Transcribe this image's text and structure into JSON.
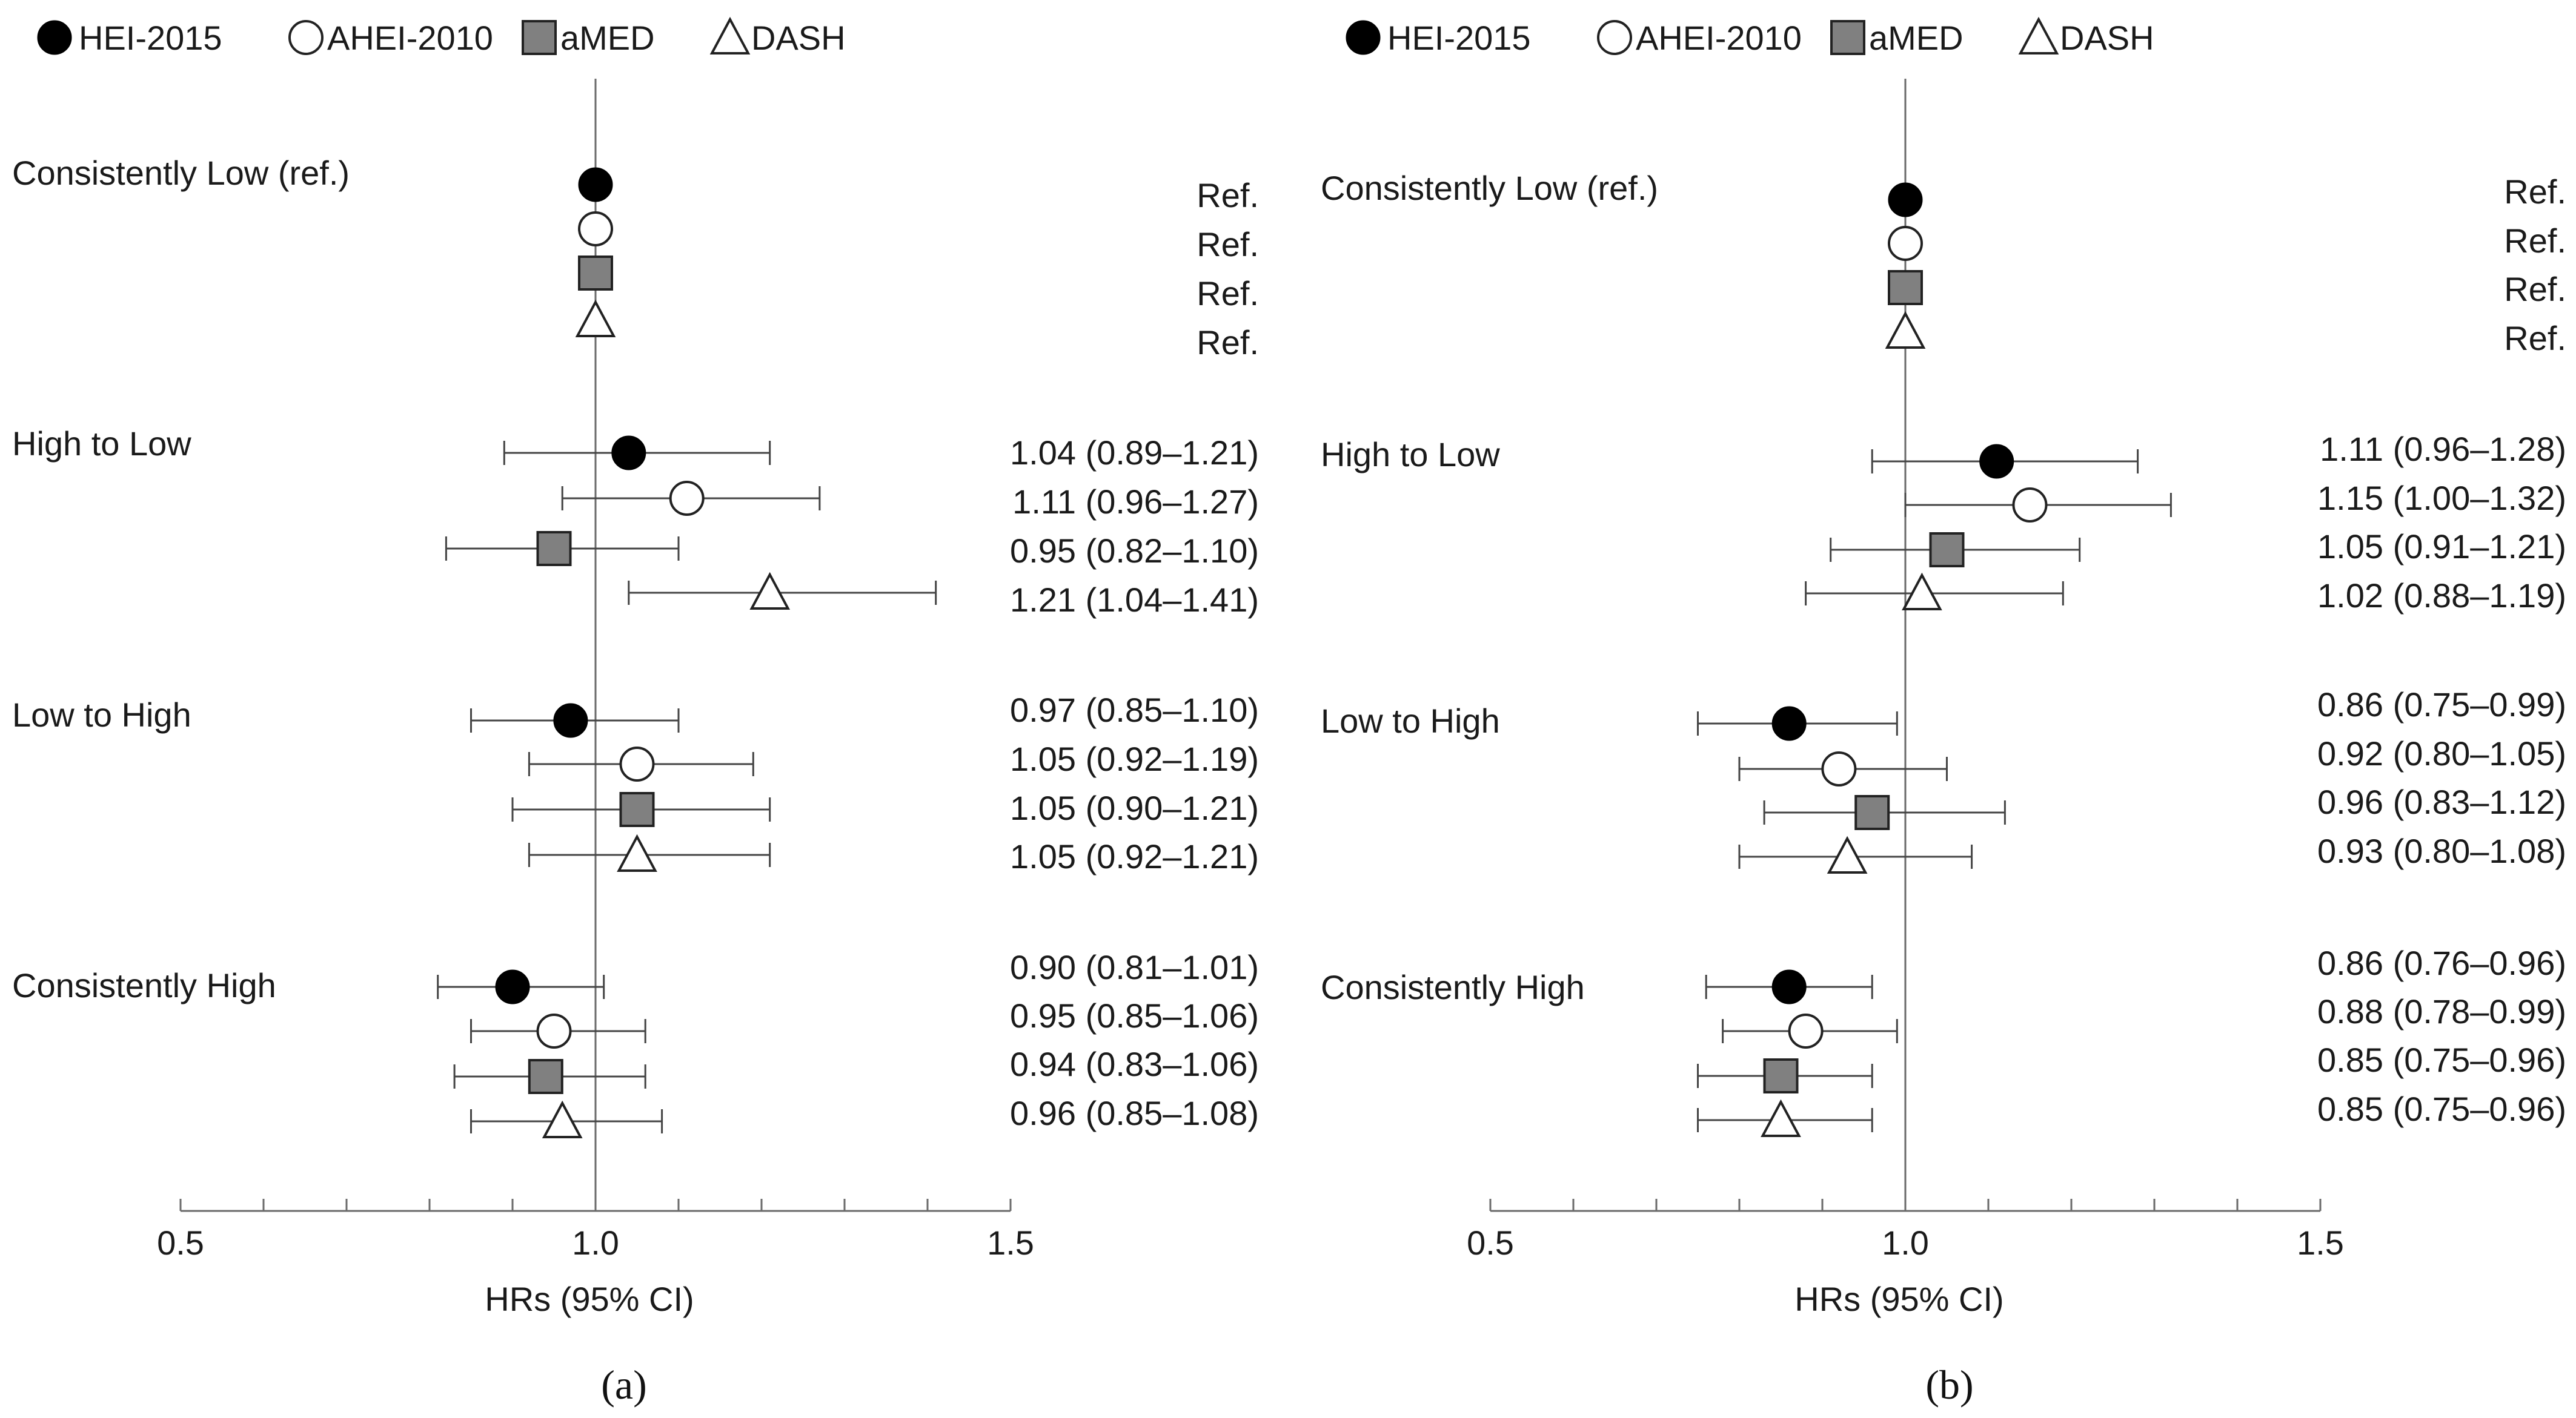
{
  "legend": [
    {
      "name": "HEI-2015",
      "marker": "filled-circle"
    },
    {
      "name": "AHEI-2010",
      "marker": "open-circle"
    },
    {
      "name": "aMED",
      "marker": "gray-square"
    },
    {
      "name": "DASH",
      "marker": "open-triangle"
    }
  ],
  "colors": {
    "filled": "#000000",
    "gray": "#808080",
    "open": "#ffffff",
    "line": "#444444"
  },
  "chart_data": [
    {
      "type": "scatter",
      "panel_label": "(a)",
      "xlabel": "HRs (95% CI)",
      "xlim": [
        0.5,
        1.5
      ],
      "xticks": [
        "0.5",
        "1.0",
        "1.5"
      ],
      "reference_line": 1.0,
      "groups": [
        {
          "label": "Consistently Low (ref.)",
          "rows": [
            {
              "series": "HEI-2015",
              "hr": 1.0,
              "lo": null,
              "hi": null,
              "text": "Ref."
            },
            {
              "series": "AHEI-2010",
              "hr": 1.0,
              "lo": null,
              "hi": null,
              "text": "Ref."
            },
            {
              "series": "aMED",
              "hr": 1.0,
              "lo": null,
              "hi": null,
              "text": "Ref."
            },
            {
              "series": "DASH",
              "hr": 1.0,
              "lo": null,
              "hi": null,
              "text": "Ref."
            }
          ]
        },
        {
          "label": "High to Low",
          "rows": [
            {
              "series": "HEI-2015",
              "hr": 1.04,
              "lo": 0.89,
              "hi": 1.21,
              "text": "1.04 (0.89–1.21)"
            },
            {
              "series": "AHEI-2010",
              "hr": 1.11,
              "lo": 0.96,
              "hi": 1.27,
              "text": "1.11 (0.96–1.27)"
            },
            {
              "series": "aMED",
              "hr": 0.95,
              "lo": 0.82,
              "hi": 1.1,
              "text": "0.95 (0.82–1.10)"
            },
            {
              "series": "DASH",
              "hr": 1.21,
              "lo": 1.04,
              "hi": 1.41,
              "text": "1.21 (1.04–1.41)"
            }
          ]
        },
        {
          "label": "Low to High",
          "rows": [
            {
              "series": "HEI-2015",
              "hr": 0.97,
              "lo": 0.85,
              "hi": 1.1,
              "text": "0.97 (0.85–1.10)"
            },
            {
              "series": "AHEI-2010",
              "hr": 1.05,
              "lo": 0.92,
              "hi": 1.19,
              "text": "1.05 (0.92–1.19)"
            },
            {
              "series": "aMED",
              "hr": 1.05,
              "lo": 0.9,
              "hi": 1.21,
              "text": "1.05 (0.90–1.21)"
            },
            {
              "series": "DASH",
              "hr": 1.05,
              "lo": 0.92,
              "hi": 1.21,
              "text": "1.05 (0.92–1.21)"
            }
          ]
        },
        {
          "label": "Consistently High",
          "rows": [
            {
              "series": "HEI-2015",
              "hr": 0.9,
              "lo": 0.81,
              "hi": 1.01,
              "text": "0.90 (0.81–1.01)"
            },
            {
              "series": "AHEI-2010",
              "hr": 0.95,
              "lo": 0.85,
              "hi": 1.06,
              "text": "0.95 (0.85–1.06)"
            },
            {
              "series": "aMED",
              "hr": 0.94,
              "lo": 0.83,
              "hi": 1.06,
              "text": "0.94 (0.83–1.06)"
            },
            {
              "series": "DASH",
              "hr": 0.96,
              "lo": 0.85,
              "hi": 1.08,
              "text": "0.96 (0.85–1.08)"
            }
          ]
        }
      ]
    },
    {
      "type": "scatter",
      "panel_label": "(b)",
      "xlabel": "HRs (95% CI)",
      "xlim": [
        0.5,
        1.5
      ],
      "xticks": [
        "0.5",
        "1.0",
        "1.5"
      ],
      "reference_line": 1.0,
      "groups": [
        {
          "label": "Consistently Low (ref.)",
          "rows": [
            {
              "series": "HEI-2015",
              "hr": 1.0,
              "lo": null,
              "hi": null,
              "text": "Ref."
            },
            {
              "series": "AHEI-2010",
              "hr": 1.0,
              "lo": null,
              "hi": null,
              "text": "Ref."
            },
            {
              "series": "aMED",
              "hr": 1.0,
              "lo": null,
              "hi": null,
              "text": "Ref."
            },
            {
              "series": "DASH",
              "hr": 1.0,
              "lo": null,
              "hi": null,
              "text": "Ref."
            }
          ]
        },
        {
          "label": "High to Low",
          "rows": [
            {
              "series": "HEI-2015",
              "hr": 1.11,
              "lo": 0.96,
              "hi": 1.28,
              "text": "1.11 (0.96–1.28)"
            },
            {
              "series": "AHEI-2010",
              "hr": 1.15,
              "lo": 1.0,
              "hi": 1.32,
              "text": "1.15 (1.00–1.32)"
            },
            {
              "series": "aMED",
              "hr": 1.05,
              "lo": 0.91,
              "hi": 1.21,
              "text": "1.05 (0.91–1.21)"
            },
            {
              "series": "DASH",
              "hr": 1.02,
              "lo": 0.88,
              "hi": 1.19,
              "text": "1.02 (0.88–1.19)"
            }
          ]
        },
        {
          "label": "Low to High",
          "rows": [
            {
              "series": "HEI-2015",
              "hr": 0.86,
              "lo": 0.75,
              "hi": 0.99,
              "text": "0.86 (0.75–0.99)"
            },
            {
              "series": "AHEI-2010",
              "hr": 0.92,
              "lo": 0.8,
              "hi": 1.05,
              "text": "0.92 (0.80–1.05)"
            },
            {
              "series": "aMED",
              "hr": 0.96,
              "lo": 0.83,
              "hi": 1.12,
              "text": "0.96 (0.83–1.12)"
            },
            {
              "series": "DASH",
              "hr": 0.93,
              "lo": 0.8,
              "hi": 1.08,
              "text": "0.93 (0.80–1.08)"
            }
          ]
        },
        {
          "label": "Consistently High",
          "rows": [
            {
              "series": "HEI-2015",
              "hr": 0.86,
              "lo": 0.76,
              "hi": 0.96,
              "text": "0.86 (0.76–0.96)"
            },
            {
              "series": "AHEI-2010",
              "hr": 0.88,
              "lo": 0.78,
              "hi": 0.99,
              "text": "0.88 (0.78–0.99)"
            },
            {
              "series": "aMED",
              "hr": 0.85,
              "lo": 0.75,
              "hi": 0.96,
              "text": "0.85 (0.75–0.96)"
            },
            {
              "series": "DASH",
              "hr": 0.85,
              "lo": 0.75,
              "hi": 0.96,
              "text": "0.85 (0.75–0.96)"
            }
          ]
        }
      ]
    }
  ]
}
